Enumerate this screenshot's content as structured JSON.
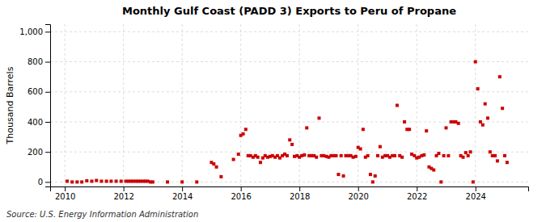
{
  "chart_data": {
    "type": "scatter",
    "title": "Monthly Gulf Coast (PADD 3) Exports to Peru of Propane",
    "ylabel": "Thousand Barrels",
    "source": "Source: U.S. Energy Information Administration",
    "color": "#cc0000",
    "marker": "square",
    "grid": true,
    "xlim": [
      2009.5,
      2025.8
    ],
    "ylim": [
      -30,
      1050
    ],
    "xticks": [
      2010,
      2012,
      2014,
      2016,
      2018,
      2020,
      2022,
      2024
    ],
    "yticks": [
      0,
      200,
      400,
      600,
      800,
      {
        "value": 1000,
        "label": "1,000"
      }
    ],
    "x": [
      2010.08,
      2010.25,
      2010.42,
      2010.58,
      2010.75,
      2010.92,
      2011.08,
      2011.25,
      2011.42,
      2011.58,
      2011.75,
      2011.92,
      2012.08,
      2012.17,
      2012.25,
      2012.33,
      2012.42,
      2012.5,
      2012.58,
      2012.67,
      2012.75,
      2012.83,
      2012.92,
      2013.0,
      2013.5,
      2014.0,
      2014.5,
      2015.0,
      2015.08,
      2015.17,
      2015.33,
      2015.75,
      2015.92,
      2016.0,
      2016.08,
      2016.17,
      2016.25,
      2016.33,
      2016.42,
      2016.5,
      2016.58,
      2016.67,
      2016.75,
      2016.83,
      2016.92,
      2017.0,
      2017.08,
      2017.17,
      2017.25,
      2017.33,
      2017.42,
      2017.5,
      2017.58,
      2017.67,
      2017.75,
      2017.83,
      2017.92,
      2018.0,
      2018.08,
      2018.17,
      2018.25,
      2018.33,
      2018.42,
      2018.5,
      2018.58,
      2018.67,
      2018.75,
      2018.83,
      2018.92,
      2019.0,
      2019.08,
      2019.17,
      2019.25,
      2019.33,
      2019.42,
      2019.5,
      2019.58,
      2019.67,
      2019.75,
      2019.83,
      2019.92,
      2020.0,
      2020.08,
      2020.17,
      2020.25,
      2020.33,
      2020.42,
      2020.5,
      2020.58,
      2020.67,
      2020.75,
      2020.83,
      2020.92,
      2021.0,
      2021.08,
      2021.17,
      2021.25,
      2021.33,
      2021.42,
      2021.5,
      2021.58,
      2021.67,
      2021.75,
      2021.83,
      2021.92,
      2022.0,
      2022.08,
      2022.17,
      2022.25,
      2022.33,
      2022.42,
      2022.5,
      2022.58,
      2022.67,
      2022.75,
      2022.83,
      2022.92,
      2023.0,
      2023.08,
      2023.17,
      2023.25,
      2023.33,
      2023.42,
      2023.5,
      2023.58,
      2023.67,
      2023.75,
      2023.83,
      2023.92,
      2024.0,
      2024.08,
      2024.17,
      2024.25,
      2024.33,
      2024.42,
      2024.5,
      2024.58,
      2024.67,
      2024.75,
      2024.83,
      2024.92,
      2025.0,
      2025.08
    ],
    "values": [
      5,
      0,
      0,
      0,
      8,
      5,
      10,
      5,
      5,
      5,
      5,
      5,
      5,
      5,
      5,
      5,
      5,
      5,
      5,
      5,
      5,
      5,
      0,
      0,
      0,
      0,
      0,
      130,
      120,
      100,
      35,
      150,
      185,
      310,
      320,
      350,
      175,
      175,
      165,
      175,
      165,
      130,
      160,
      175,
      165,
      170,
      175,
      165,
      175,
      160,
      175,
      185,
      175,
      280,
      250,
      170,
      175,
      165,
      175,
      180,
      360,
      175,
      175,
      175,
      165,
      425,
      175,
      175,
      170,
      165,
      175,
      175,
      175,
      50,
      175,
      40,
      175,
      175,
      175,
      165,
      170,
      230,
      220,
      350,
      165,
      175,
      50,
      0,
      40,
      175,
      235,
      165,
      175,
      175,
      165,
      175,
      175,
      510,
      175,
      165,
      400,
      350,
      350,
      185,
      175,
      160,
      165,
      175,
      180,
      340,
      100,
      90,
      80,
      175,
      190,
      0,
      175,
      360,
      175,
      400,
      400,
      400,
      390,
      175,
      165,
      195,
      175,
      200,
      0,
      800,
      620,
      400,
      380,
      520,
      425,
      200,
      175,
      175,
      140,
      700,
      490,
      175,
      130
    ]
  }
}
